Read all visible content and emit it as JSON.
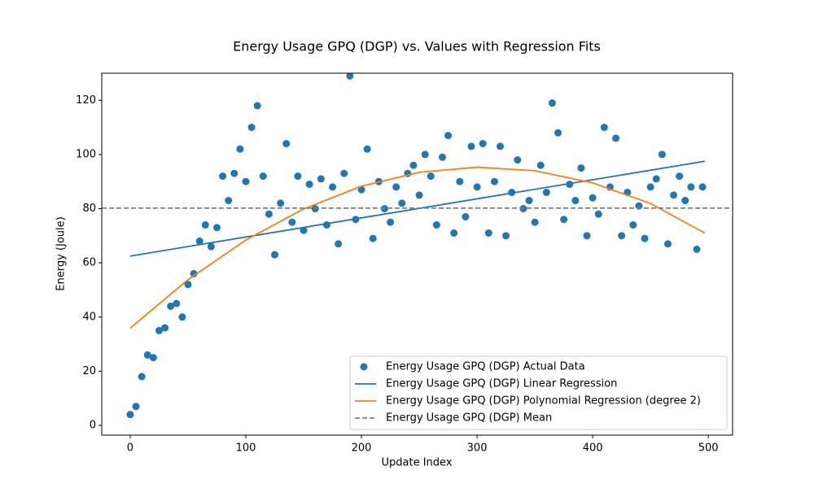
{
  "chart_data": {
    "type": "scatter",
    "title": "Energy Usage GPQ (DGP) vs. Values with Regression Fits",
    "x_label": "Update Index",
    "y_label": "Energy (Joule)",
    "xlim": [
      -24.6,
      521
    ],
    "ylim": [
      -3.6,
      130
    ],
    "xticks": [
      0,
      100,
      200,
      300,
      400,
      500
    ],
    "yticks": [
      0,
      20,
      40,
      60,
      80,
      100,
      120
    ],
    "legend": "lower right",
    "series": [
      {
        "name": "Energy Usage GPQ (DGP) Actual Data",
        "kind": "scatter",
        "color": "#1f77b4",
        "x": [
          0,
          5,
          10,
          15,
          20,
          25,
          30,
          35,
          40,
          45,
          50,
          55,
          60,
          65,
          70,
          75,
          80,
          85,
          90,
          95,
          100,
          105,
          110,
          115,
          120,
          125,
          130,
          135,
          140,
          145,
          150,
          155,
          160,
          165,
          170,
          175,
          180,
          185,
          190,
          195,
          200,
          205,
          210,
          215,
          220,
          225,
          230,
          235,
          240,
          245,
          250,
          255,
          260,
          265,
          270,
          275,
          280,
          285,
          290,
          295,
          300,
          305,
          310,
          315,
          320,
          325,
          330,
          335,
          340,
          345,
          350,
          355,
          360,
          365,
          370,
          375,
          380,
          385,
          390,
          395,
          400,
          405,
          410,
          415,
          420,
          425,
          430,
          435,
          440,
          445,
          450,
          455,
          460,
          465,
          470,
          475,
          480,
          485,
          490,
          495
        ],
        "values": [
          4,
          7,
          18,
          26,
          25,
          35,
          36,
          44,
          45,
          40,
          52,
          56,
          68,
          74,
          66,
          73,
          92,
          83,
          93,
          102,
          90,
          110,
          118,
          92,
          78,
          63,
          82,
          104,
          75,
          92,
          72,
          89,
          80,
          91,
          74,
          88,
          67,
          93,
          129,
          76,
          87,
          102,
          69,
          90,
          80,
          75,
          88,
          82,
          93,
          96,
          85,
          100,
          92,
          74,
          99,
          107,
          71,
          90,
          77,
          103,
          88,
          104,
          71,
          90,
          103,
          70,
          86,
          98,
          80,
          83,
          75,
          96,
          86,
          119,
          108,
          76,
          89,
          83,
          95,
          70,
          84,
          78,
          110,
          88,
          106,
          70,
          86,
          74,
          81,
          69,
          88,
          91,
          100,
          67,
          85,
          92,
          83,
          88,
          65,
          88
        ]
      },
      {
        "name": "Energy Usage GPQ (DGP) Linear Regression",
        "kind": "line",
        "color": "#1f77b4",
        "x": [
          0,
          497
        ],
        "values": [
          62.5,
          97.5
        ]
      },
      {
        "name": "Energy Usage GPQ (DGP) Polynomial Regression (degree 2)",
        "kind": "line",
        "color": "#ff7f0e",
        "x": [
          0,
          50,
          100,
          150,
          200,
          250,
          300,
          350,
          400,
          450,
          497
        ],
        "values": [
          35.9,
          53.8,
          68.4,
          79.9,
          88.3,
          93.4,
          95.3,
          94.0,
          89.5,
          81.9,
          71
        ]
      },
      {
        "name": "Energy Usage GPQ (DGP) Mean",
        "kind": "hline",
        "color": "#808080",
        "value": 80.2
      }
    ]
  }
}
